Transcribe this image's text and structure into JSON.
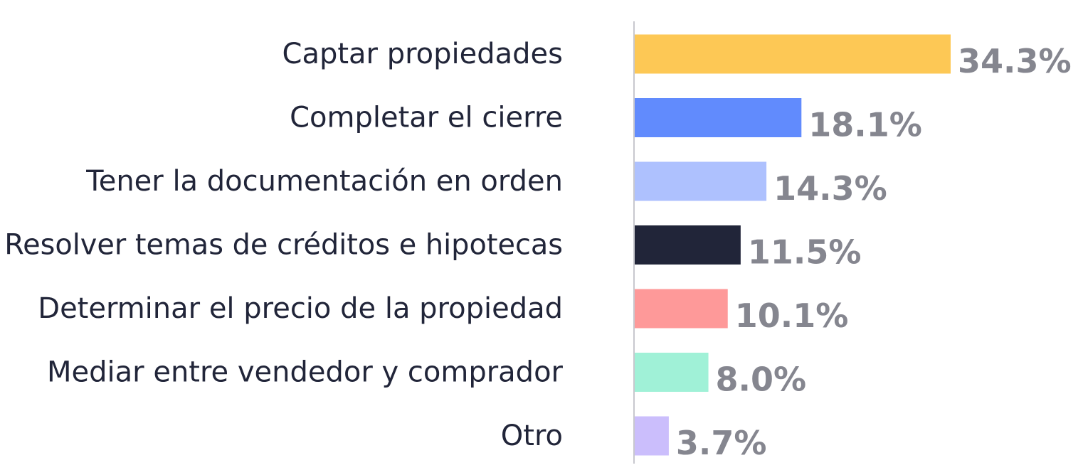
{
  "chart_data": {
    "type": "bar",
    "orientation": "horizontal",
    "categories": [
      "Captar propiedades",
      "Completar el cierre",
      "Tener la documentación en orden",
      "Resolver temas de créditos e hipotecas",
      "Determinar el precio de la propiedad",
      "Mediar entre vendedor y comprador",
      "Otro"
    ],
    "values": [
      34.3,
      18.1,
      14.3,
      11.5,
      10.1,
      8.0,
      3.7
    ],
    "value_labels": [
      "34.3%",
      "18.1%",
      "14.3%",
      "11.5%",
      "10.1%",
      "8.0%",
      "3.7%"
    ],
    "colors": [
      "#fdc855",
      "#618bfd",
      "#aec1fe",
      "#212539",
      "#fe9999",
      "#a0f1d7",
      "#cbbefc"
    ],
    "title": "",
    "xlabel": "",
    "ylabel": "",
    "xlim": [
      0,
      34.3
    ],
    "grid": false,
    "legend": "none",
    "label_color": "#212539",
    "value_color": "#85868f",
    "axis_color": "#c8c8ce"
  }
}
